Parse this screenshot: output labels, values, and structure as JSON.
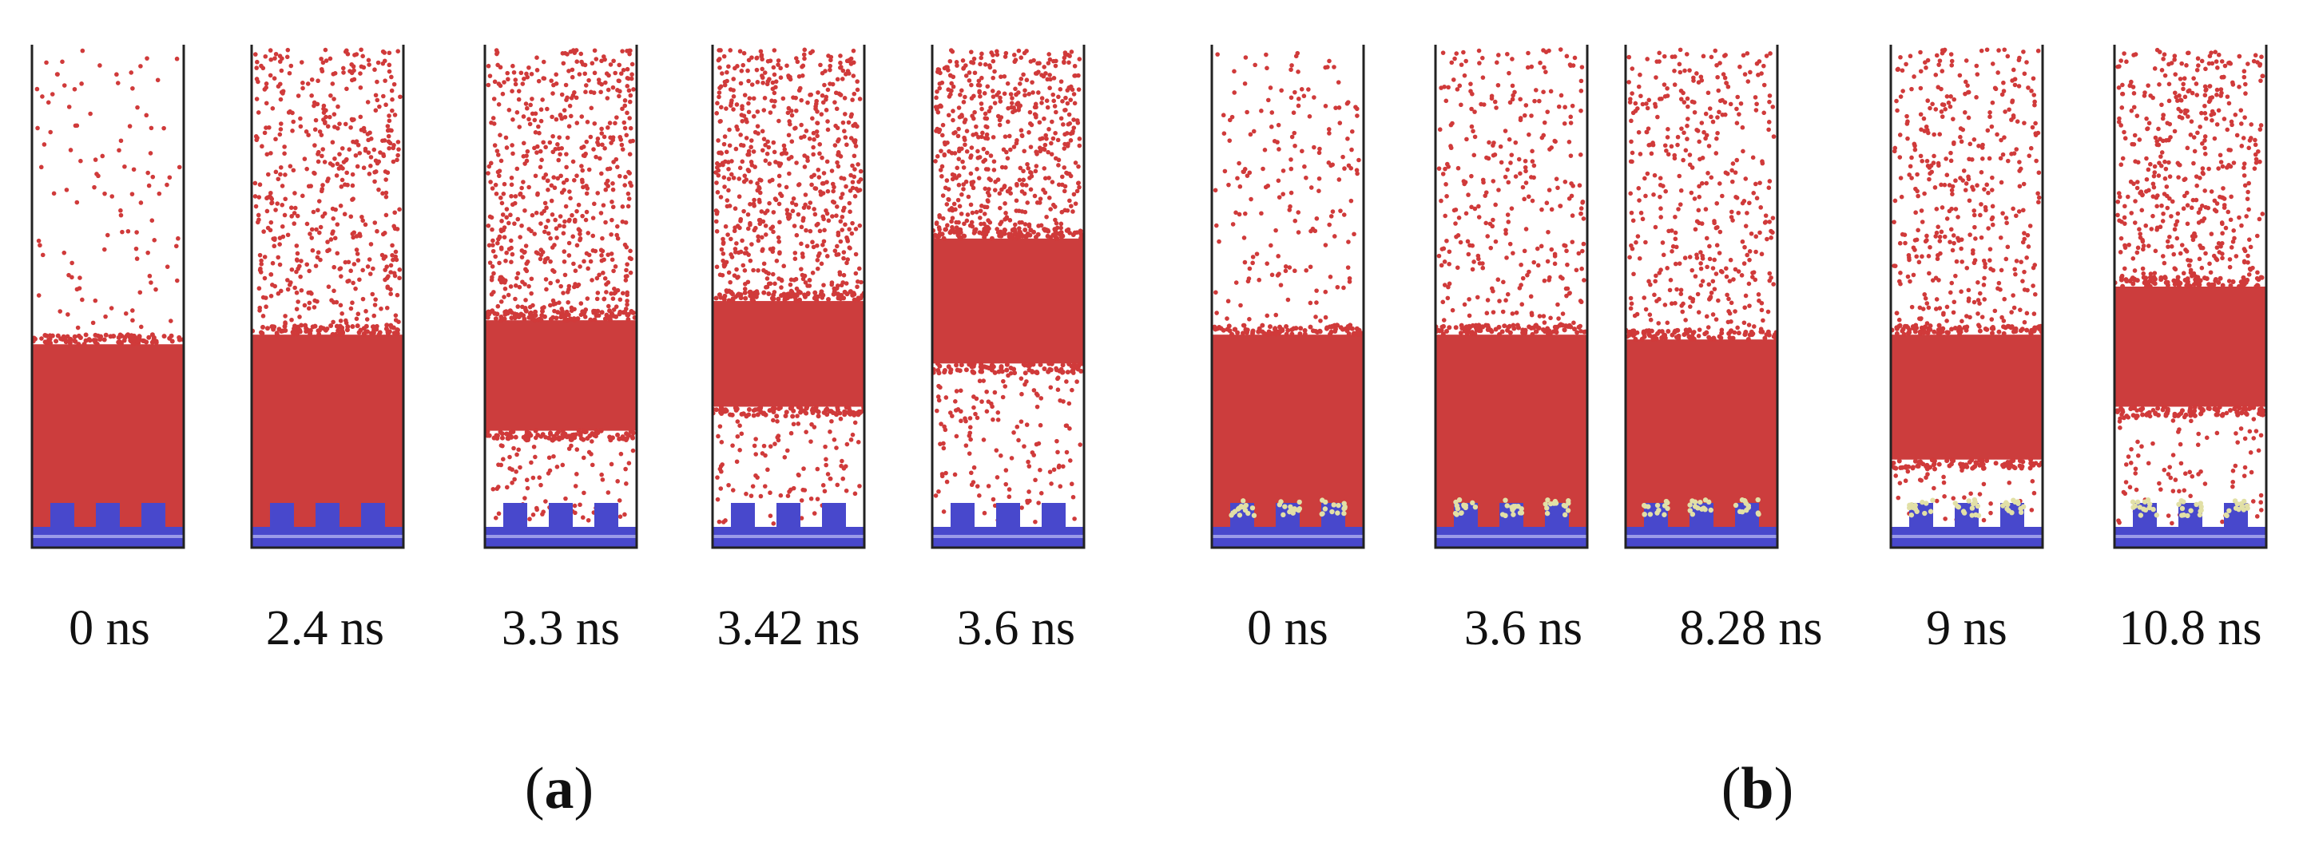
{
  "panels": [
    {
      "label": "a",
      "frames": [
        {
          "time": "0 ns",
          "dense_band": [
            0.62,
            1.0
          ],
          "density_above": 0.12,
          "density_below": 0,
          "adsorbed": false
        },
        {
          "time": "2.4 ns",
          "dense_band": [
            0.6,
            1.0
          ],
          "density_above": 0.55,
          "density_below": 0,
          "adsorbed": false
        },
        {
          "time": "3.3 ns",
          "dense_band": [
            0.57,
            0.8
          ],
          "density_above": 0.65,
          "density_below": 0.55,
          "adsorbed": false
        },
        {
          "time": "3.42 ns",
          "dense_band": [
            0.53,
            0.75
          ],
          "density_above": 0.7,
          "density_below": 0.5,
          "adsorbed": false
        },
        {
          "time": "3.6 ns",
          "dense_band": [
            0.4,
            0.66
          ],
          "density_above": 0.6,
          "density_below": 0.5,
          "adsorbed": false
        }
      ]
    },
    {
      "label": "b",
      "frames": [
        {
          "time": "0 ns",
          "dense_band": [
            0.6,
            1.0
          ],
          "density_above": 0.2,
          "density_below": 0,
          "adsorbed": true
        },
        {
          "time": "3.6 ns",
          "dense_band": [
            0.6,
            1.0
          ],
          "density_above": 0.35,
          "density_below": 0,
          "adsorbed": true
        },
        {
          "time": "8.28 ns",
          "dense_band": [
            0.61,
            1.0
          ],
          "density_above": 0.45,
          "density_below": 0,
          "adsorbed": true
        },
        {
          "time": "9 ns",
          "dense_band": [
            0.6,
            0.86
          ],
          "density_above": 0.45,
          "density_below": 0.3,
          "adsorbed": true
        },
        {
          "time": "10.8 ns",
          "dense_band": [
            0.5,
            0.75
          ],
          "density_above": 0.5,
          "density_below": 0.45,
          "adsorbed": true
        }
      ]
    }
  ],
  "colors": {
    "molecule": "#d03a3a",
    "molecule_dense": "#cc3d3d",
    "substrate": "#4848cc",
    "substrate_light": "#9a9ae8",
    "adsorbate": "#e2e0a6",
    "frame_border": "#222222"
  }
}
